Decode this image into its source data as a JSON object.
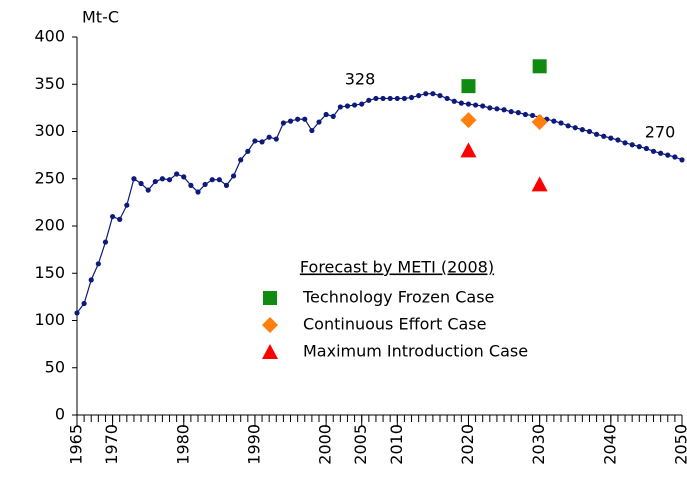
{
  "chart_data": {
    "type": "line",
    "y_unit_label": "Mt-C",
    "xlim": [
      1965,
      2050
    ],
    "xticks": [
      1965,
      1970,
      1980,
      1990,
      2000,
      2005,
      2010,
      2020,
      2030,
      2040,
      2050
    ],
    "ylim": [
      0,
      400
    ],
    "yticks": [
      0,
      50,
      100,
      150,
      200,
      250,
      300,
      350,
      400
    ],
    "grid": false,
    "x": [
      1965,
      1966,
      1967,
      1968,
      1969,
      1970,
      1971,
      1972,
      1973,
      1974,
      1975,
      1976,
      1977,
      1978,
      1979,
      1980,
      1981,
      1982,
      1983,
      1984,
      1985,
      1986,
      1987,
      1988,
      1989,
      1990,
      1991,
      1992,
      1993,
      1994,
      1995,
      1996,
      1997,
      1998,
      1999,
      2000,
      2001,
      2002,
      2003,
      2004,
      2005,
      2006,
      2007,
      2008,
      2009,
      2010,
      2011,
      2012,
      2013,
      2014,
      2015,
      2016,
      2017,
      2018,
      2019,
      2020,
      2021,
      2022,
      2023,
      2024,
      2025,
      2026,
      2027,
      2028,
      2029,
      2030,
      2031,
      2032,
      2033,
      2034,
      2035,
      2036,
      2037,
      2038,
      2039,
      2040,
      2041,
      2042,
      2043,
      2044,
      2045,
      2046,
      2047,
      2048,
      2049,
      2050
    ],
    "series": [
      {
        "color": "#0d1a7a",
        "values": [
          108,
          118,
          143,
          160,
          183,
          210,
          207,
          222,
          250,
          245,
          238,
          247,
          250,
          249,
          255,
          252,
          243,
          236,
          244,
          249,
          249,
          243,
          253,
          270,
          279,
          290,
          289,
          294,
          292,
          309,
          311,
          313,
          313,
          301,
          310,
          318,
          316,
          326,
          327,
          328,
          329,
          333,
          335,
          335,
          335,
          335,
          335,
          336,
          338,
          340,
          340,
          338,
          335,
          332,
          330,
          329,
          328,
          327,
          325,
          324,
          323,
          321,
          320,
          318,
          317,
          315,
          313,
          311,
          309,
          306,
          304,
          302,
          300,
          297,
          295,
          293,
          291,
          288,
          286,
          284,
          282,
          279,
          277,
          275,
          273,
          270
        ]
      }
    ],
    "annotations": [
      "328",
      "270"
    ],
    "legend_title": "Forecast by METI (2008)",
    "forecasts": [
      {
        "name": "Technology Frozen Case",
        "color": "#118a11",
        "marker": "square",
        "x": [
          2020,
          2030
        ],
        "values": [
          348,
          369
        ]
      },
      {
        "name": "Continuous Effort Case",
        "color": "#ff7f0e",
        "marker": "diamond",
        "x": [
          2020,
          2030
        ],
        "values": [
          312,
          310
        ]
      },
      {
        "name": "Maximum Introduction Case",
        "color": "#ff0000",
        "marker": "triangle",
        "x": [
          2020,
          2030
        ],
        "values": [
          280,
          244
        ]
      }
    ]
  }
}
